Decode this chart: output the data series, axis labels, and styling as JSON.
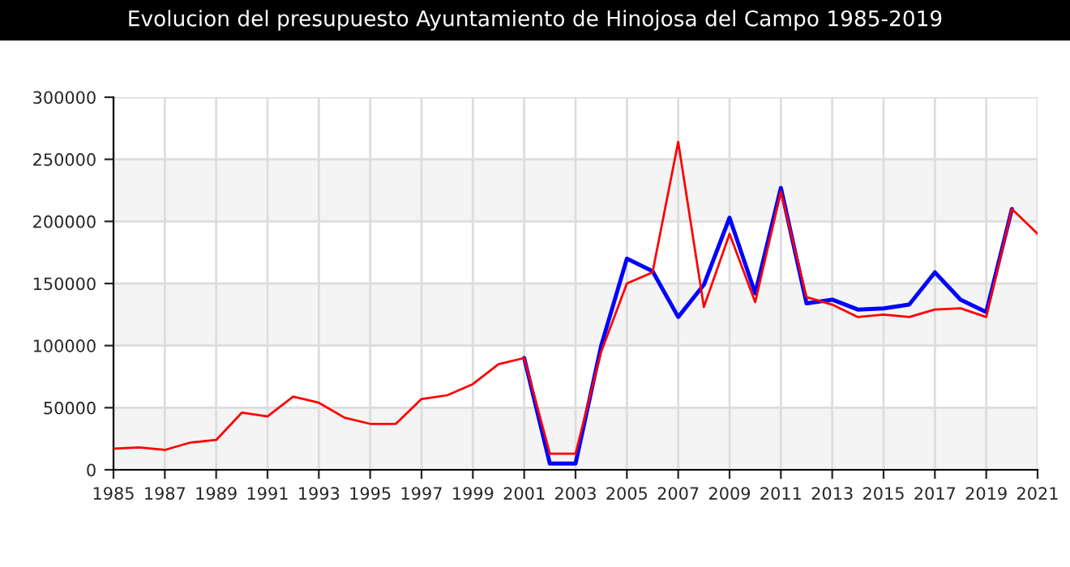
{
  "chart_data": {
    "type": "line",
    "title": "Evolucion del presupuesto Ayuntamiento de Hinojosa del Campo 1985-2019",
    "x": [
      1985,
      1986,
      1987,
      1988,
      1989,
      1990,
      1991,
      1992,
      1993,
      1994,
      1995,
      1996,
      1997,
      1998,
      1999,
      2000,
      2001,
      2002,
      2003,
      2004,
      2005,
      2006,
      2007,
      2008,
      2009,
      2010,
      2011,
      2012,
      2013,
      2014,
      2015,
      2016,
      2017,
      2018,
      2019,
      2020,
      2021
    ],
    "series": [
      {
        "color": "#0000ff",
        "values": [
          null,
          null,
          null,
          null,
          null,
          null,
          null,
          null,
          null,
          null,
          null,
          null,
          null,
          null,
          null,
          null,
          90000,
          5000,
          5000,
          100000,
          170000,
          160000,
          123000,
          149000,
          203000,
          142000,
          227000,
          134000,
          137000,
          129000,
          130000,
          133000,
          159000,
          137000,
          127000,
          210000,
          null
        ]
      },
      {
        "color": "#ff0000",
        "values": [
          17000,
          18000,
          16000,
          22000,
          24000,
          46000,
          43000,
          59000,
          54000,
          42000,
          37000,
          37000,
          57000,
          60000,
          69000,
          85000,
          90000,
          13000,
          13000,
          95000,
          150000,
          159000,
          264000,
          131000,
          190000,
          135000,
          224000,
          139000,
          133000,
          123000,
          125000,
          123000,
          129000,
          130000,
          123000,
          210000,
          190000
        ]
      }
    ],
    "xlim": [
      1985,
      2021
    ],
    "xticks": [
      1985,
      1987,
      1989,
      1991,
      1993,
      1995,
      1997,
      1999,
      2001,
      2003,
      2005,
      2007,
      2009,
      2011,
      2013,
      2015,
      2017,
      2019,
      2021
    ],
    "ylim": [
      0,
      300000
    ],
    "yticks": [
      0,
      50000,
      100000,
      150000,
      200000,
      250000,
      300000
    ],
    "grid": true,
    "marker": "none",
    "line_style": "solid",
    "bands": [
      {
        "axis": "y",
        "from": 0,
        "to": 50000,
        "color": "#f4f4f4"
      },
      {
        "axis": "y",
        "from": 100000,
        "to": 150000,
        "color": "#f4f4f4"
      },
      {
        "axis": "y",
        "from": 200000,
        "to": 250000,
        "color": "#f4f4f4"
      }
    ]
  }
}
